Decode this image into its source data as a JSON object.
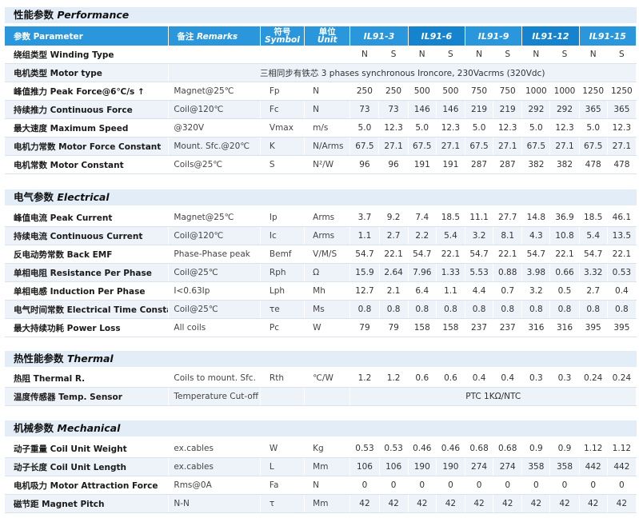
{
  "performance": {
    "title_cn": "性能参数",
    "title_en": "Performance",
    "header": {
      "param": "参数 Parameter",
      "remarks_cn": "备注",
      "remarks_en": "Remarks",
      "symbol_cn": "符号",
      "symbol_en": "Symbol",
      "unit_cn": "单位",
      "unit_en": "Unit",
      "models": [
        "IL91-3",
        "IL91-6",
        "IL91-9",
        "IL91-12",
        "IL91-15"
      ]
    },
    "winding_row": {
      "name": "绕组类型 Winding Type",
      "values": [
        "N",
        "S",
        "N",
        "S",
        "N",
        "S",
        "N",
        "S",
        "N",
        "S"
      ]
    },
    "motor_type_row": {
      "name": "电机类型 Motor type",
      "value": "三相同步有铁芯 3 phases synchronous Ironcore, 230Vacrms (320Vdc)"
    },
    "rows": [
      {
        "name": "峰值推力 Peak Force@6℃/s ↑",
        "remark": "Magnet@25℃",
        "symbol": "Fp",
        "unit": "N",
        "values": [
          "250",
          "250",
          "500",
          "500",
          "750",
          "750",
          "1000",
          "1000",
          "1250",
          "1250"
        ]
      },
      {
        "name": "持续推力 Continuous Force",
        "remark": "Coil@120℃",
        "symbol": "Fc",
        "unit": "N",
        "values": [
          "73",
          "73",
          "146",
          "146",
          "219",
          "219",
          "292",
          "292",
          "365",
          "365"
        ]
      },
      {
        "name": "最大速度 Maximum Speed",
        "remark": "@320V",
        "symbol": "Vmax",
        "unit": "m/s",
        "values": [
          "5.0",
          "12.3",
          "5.0",
          "12.3",
          "5.0",
          "12.3",
          "5.0",
          "12.3",
          "5.0",
          "12.3"
        ]
      },
      {
        "name": "电机力常数 Motor Force Constant",
        "remark": "Mount. Sfc.@20℃",
        "symbol": "K",
        "unit": "N/Arms",
        "values": [
          "67.5",
          "27.1",
          "67.5",
          "27.1",
          "67.5",
          "27.1",
          "67.5",
          "27.1",
          "67.5",
          "27.1"
        ]
      },
      {
        "name": "电机常数 Motor Constant",
        "remark": "Coils@25℃",
        "symbol": "S",
        "unit": "N²/W",
        "values": [
          "96",
          "96",
          "191",
          "191",
          "287",
          "287",
          "382",
          "382",
          "478",
          "478"
        ]
      }
    ]
  },
  "electrical": {
    "title_cn": "电气参数",
    "title_en": "Electrical",
    "rows": [
      {
        "name": "峰值电流 Peak Current",
        "remark": "Magnet@25℃",
        "symbol": "Ip",
        "unit": "Arms",
        "values": [
          "3.7",
          "9.2",
          "7.4",
          "18.5",
          "11.1",
          "27.7",
          "14.8",
          "36.9",
          "18.5",
          "46.1"
        ]
      },
      {
        "name": "持续电流 Continuous Current",
        "remark": "Coil@120℃",
        "symbol": "Ic",
        "unit": "Arms",
        "values": [
          "1.1",
          "2.7",
          "2.2",
          "5.4",
          "3.2",
          "8.1",
          "4.3",
          "10.8",
          "5.4",
          "13.5"
        ]
      },
      {
        "name": "反电动势常数 Back EMF",
        "remark": "Phase-Phase peak",
        "symbol": "Bemf",
        "unit": "V/M/S",
        "values": [
          "54.7",
          "22.1",
          "54.7",
          "22.1",
          "54.7",
          "22.1",
          "54.7",
          "22.1",
          "54.7",
          "22.1"
        ]
      },
      {
        "name": "单相电阻 Resistance Per Phase",
        "remark": "Coil@25℃",
        "symbol": "Rph",
        "unit": "Ω",
        "values": [
          "15.9",
          "2.64",
          "7.96",
          "1.33",
          "5.53",
          "0.88",
          "3.98",
          "0.66",
          "3.32",
          "0.53"
        ]
      },
      {
        "name": "单相电感 Induction Per Phase",
        "remark": "I<0.63Ip",
        "symbol": "Lph",
        "unit": "Mh",
        "values": [
          "12.7",
          "2.1",
          "6.4",
          "1.1",
          "4.4",
          "0.7",
          "3.2",
          "0.5",
          "2.7",
          "0.4"
        ]
      },
      {
        "name": "电气时间常数 Electrical Time Constant",
        "remark": "Coil@25℃",
        "symbol": "τe",
        "unit": "Ms",
        "values": [
          "0.8",
          "0.8",
          "0.8",
          "0.8",
          "0.8",
          "0.8",
          "0.8",
          "0.8",
          "0.8",
          "0.8"
        ]
      },
      {
        "name": "最大持续功耗 Power Loss",
        "remark": "All coils",
        "symbol": "Pc",
        "unit": "W",
        "values": [
          "79",
          "79",
          "158",
          "158",
          "237",
          "237",
          "316",
          "316",
          "395",
          "395"
        ]
      }
    ]
  },
  "thermal": {
    "title_cn": "热性能参数",
    "title_en": "Thermal",
    "rows": [
      {
        "name": "热阻 Thermal R.",
        "remark": "Coils to mount. Sfc.",
        "symbol": "Rth",
        "unit": "℃/W",
        "values": [
          "1.2",
          "1.2",
          "0.6",
          "0.6",
          "0.4",
          "0.4",
          "0.3",
          "0.3",
          "0.24",
          "0.24"
        ]
      }
    ],
    "sensor_row": {
      "name": "温度传感器 Temp. Sensor",
      "remark": "Temperature Cut-off",
      "value": "PTC 1KΩ/NTC"
    }
  },
  "mechanical": {
    "title_cn": "机械参数",
    "title_en": "Mechanical",
    "rows": [
      {
        "name": "动子重量 Coil Unit Weight",
        "remark": "ex.cables",
        "symbol": "W",
        "unit": "Kg",
        "values": [
          "0.53",
          "0.53",
          "0.46",
          "0.46",
          "0.68",
          "0.68",
          "0.9",
          "0.9",
          "1.12",
          "1.12"
        ]
      },
      {
        "name": "动子长度 Coil Unit Length",
        "remark": "ex.cables",
        "symbol": "L",
        "unit": "Mm",
        "values": [
          "106",
          "106",
          "190",
          "190",
          "274",
          "274",
          "358",
          "358",
          "442",
          "442"
        ]
      },
      {
        "name": "电机吸力 Motor Attraction Force",
        "remark": "Rms@0A",
        "symbol": "Fa",
        "unit": "N",
        "values": [
          "0",
          "0",
          "0",
          "0",
          "0",
          "0",
          "0",
          "0",
          "0",
          "0"
        ]
      },
      {
        "name": "磁节距 Magnet Pitch",
        "remark": "N-N",
        "symbol": "τ",
        "unit": "Mm",
        "values": [
          "42",
          "42",
          "42",
          "42",
          "42",
          "42",
          "42",
          "42",
          "42",
          "42"
        ]
      }
    ]
  }
}
